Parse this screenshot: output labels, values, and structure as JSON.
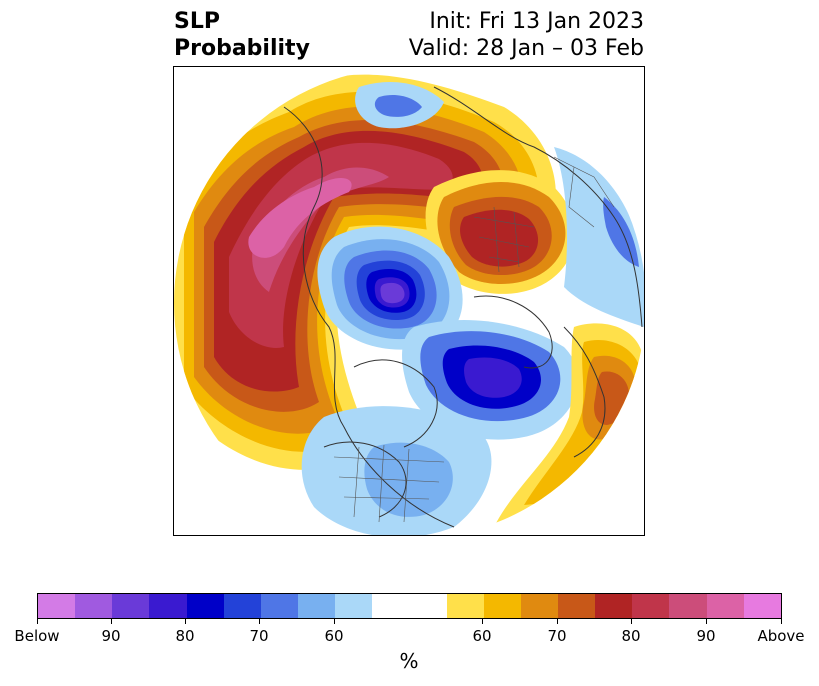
{
  "header": {
    "title_line1": "SLP",
    "title_line2": "Probability",
    "init": "Init: Fri 13 Jan 2023",
    "valid": "Valid: 28 Jan – 03 Feb"
  },
  "colors": {
    "below": [
      "#d37be6",
      "#a05ae0",
      "#6a3ad8",
      "#3a1ad0",
      "#0000c8",
      "#2342d8",
      "#4f76e6",
      "#78b0f0",
      "#aad8f8"
    ],
    "neutral": "#ffffff",
    "above": [
      "#ffe04a",
      "#f4b800",
      "#e08a10",
      "#c85818",
      "#b02424",
      "#c0354a",
      "#cc4d7a",
      "#dc62a6",
      "#e77ae0"
    ]
  },
  "colorbar": {
    "ticks": [
      "Below",
      "90",
      "80",
      "70",
      "60",
      "60",
      "70",
      "80",
      "90",
      "Above"
    ],
    "units": "%"
  },
  "map": {
    "projection": "north-polar-stereographic",
    "features": [
      {
        "name": "pacific-above-max",
        "color": "#dc62a6"
      },
      {
        "name": "eurasia-above-max",
        "color": "#b02424"
      },
      {
        "name": "arctic-below-max",
        "color": "#6a3ad8"
      },
      {
        "name": "atlantic-below-max",
        "color": "#3a1ad0"
      }
    ]
  }
}
